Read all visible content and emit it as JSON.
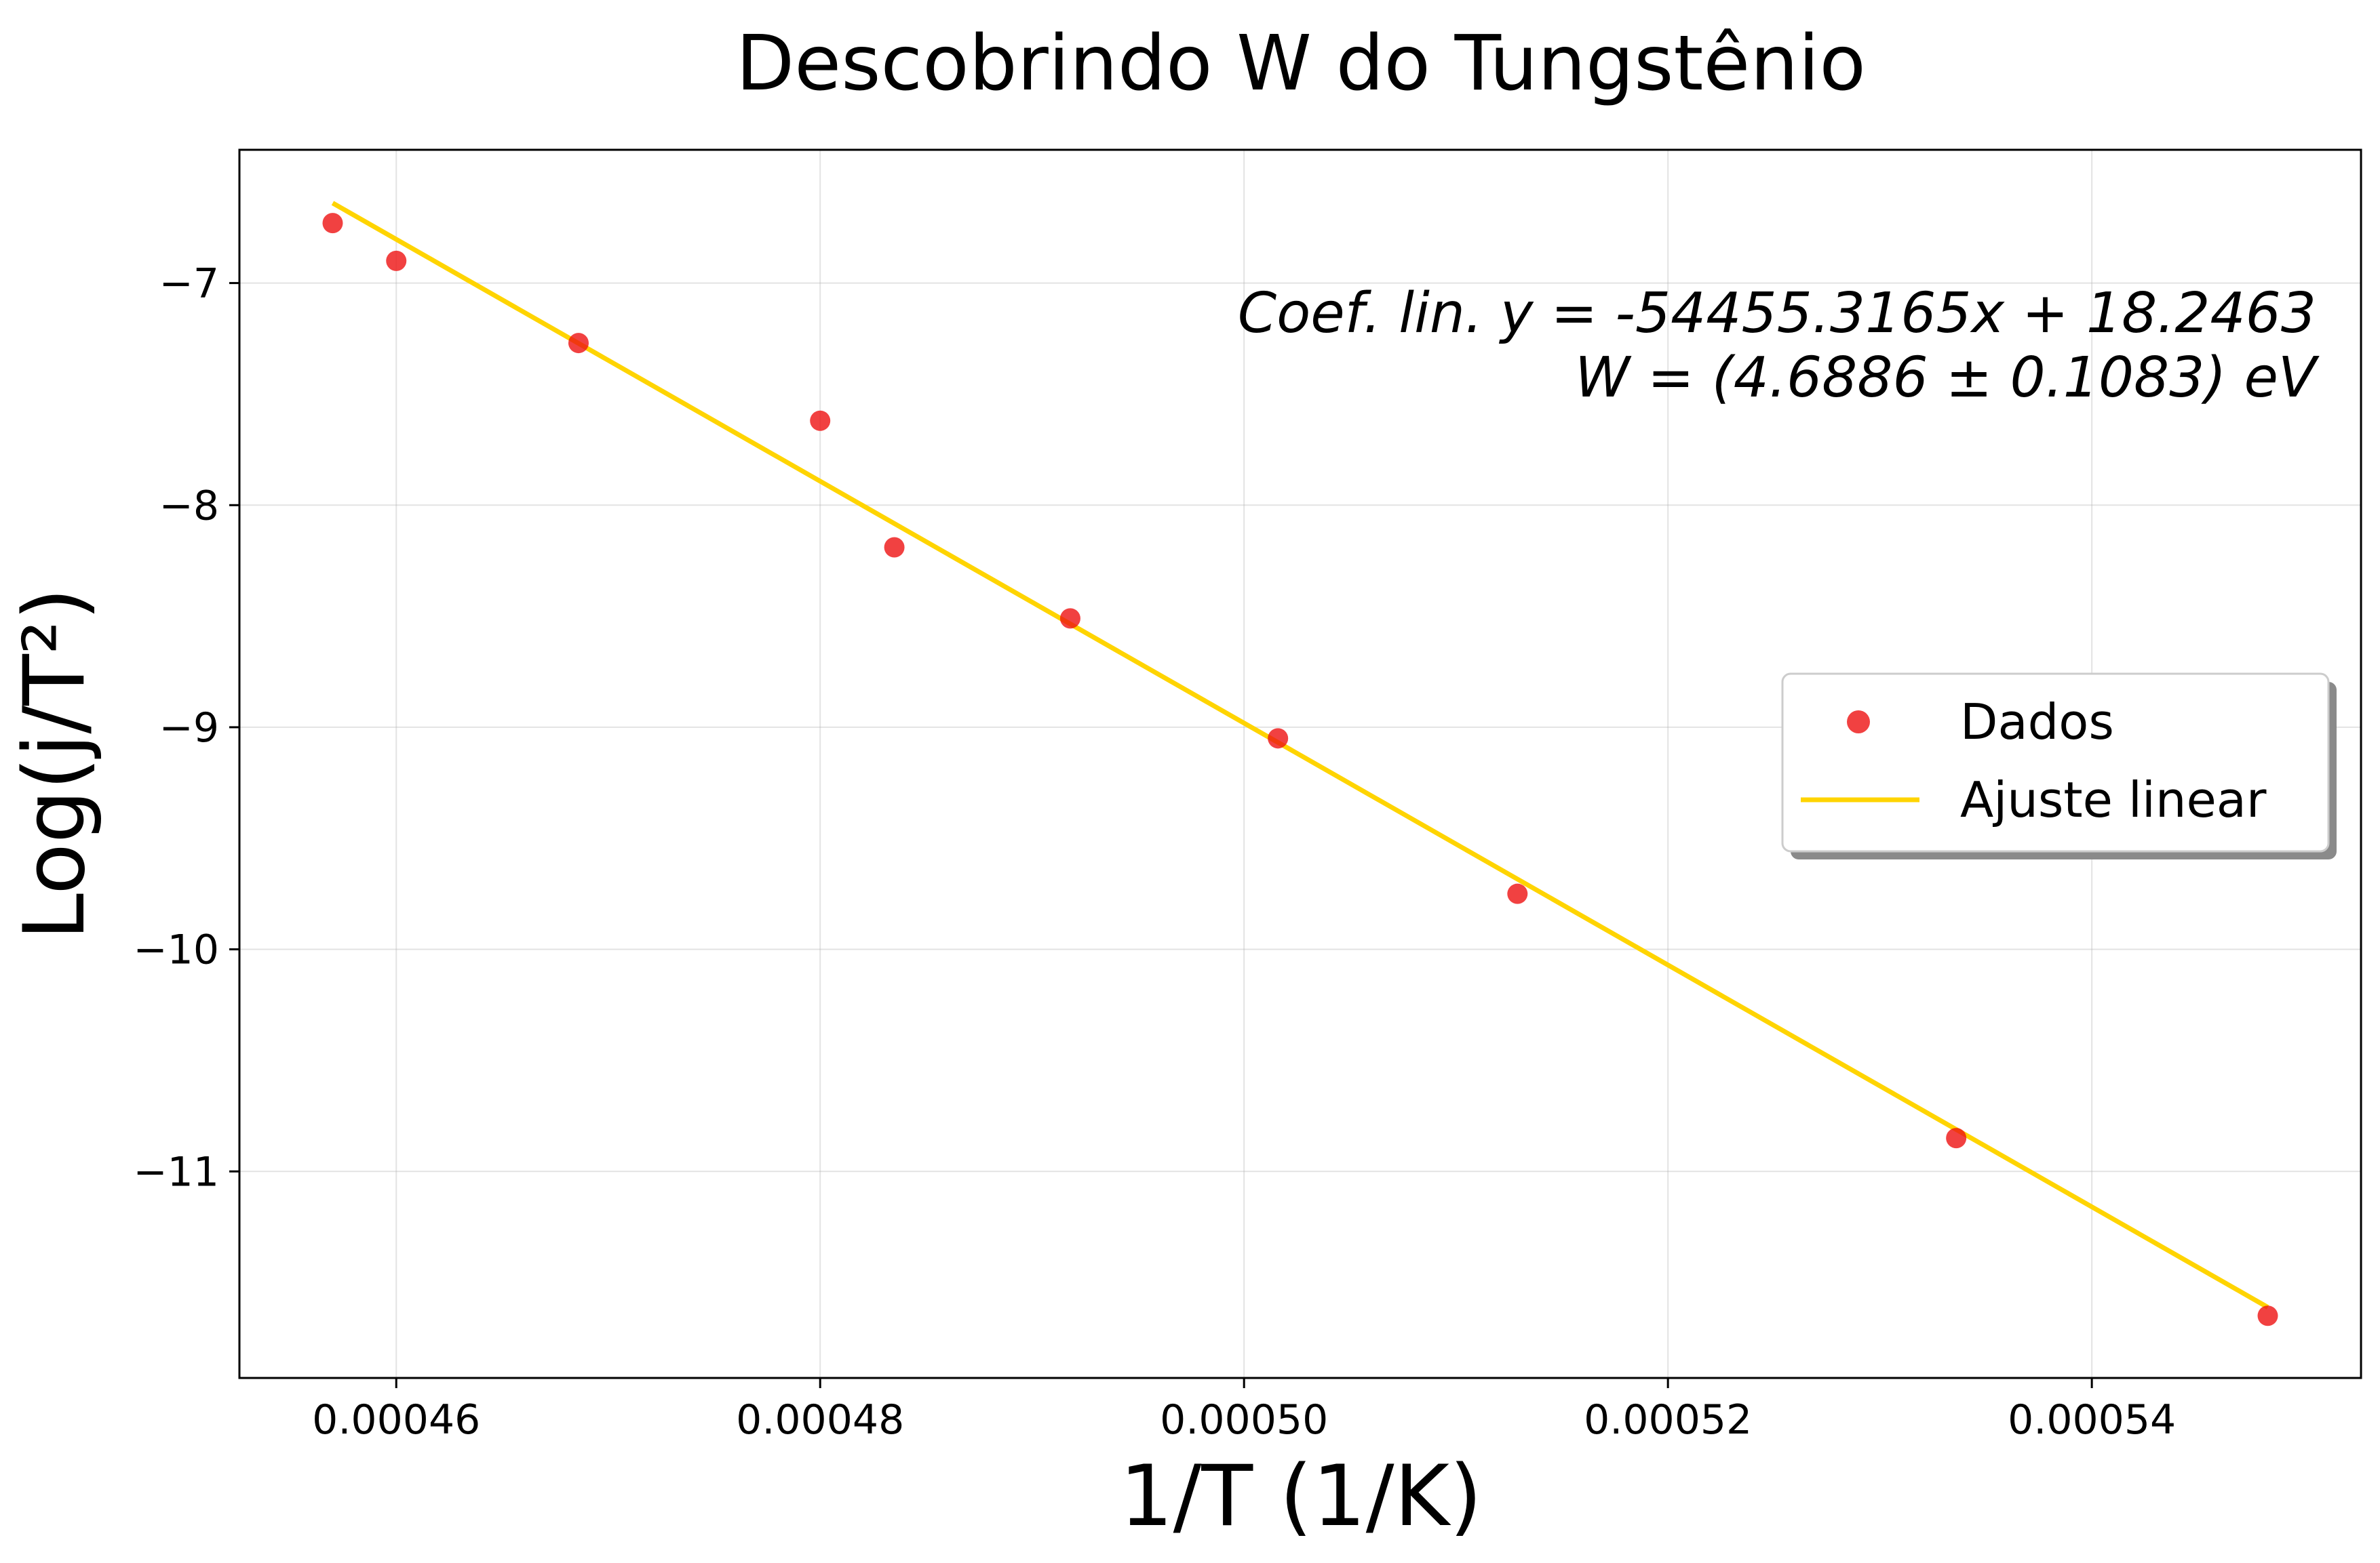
{
  "chart_data": {
    "type": "scatter",
    "title": "Descobrindo W do Tungstênio",
    "xlabel": "1/T (1/K)",
    "ylabel": "Log(j/T²)",
    "xlim": [
      0.0004526,
      0.0005527
    ],
    "ylim": [
      -11.93,
      -6.4
    ],
    "x_ticks": [
      0.00046,
      0.00048,
      0.0005,
      0.00052,
      0.00054
    ],
    "x_tick_labels": [
      "0.00046",
      "0.00048",
      "0.00050",
      "0.00052",
      "0.00054"
    ],
    "y_ticks": [
      -7,
      -8,
      -9,
      -10,
      -11
    ],
    "y_tick_labels": [
      "−7",
      "−8",
      "−9",
      "−10",
      "−11"
    ],
    "grid": true,
    "legend_position": "center-right",
    "series": [
      {
        "name": "Dados",
        "kind": "scatter",
        "color": "#ee1111",
        "x": [
          0.000457,
          0.00046,
          0.0004686,
          0.00048,
          0.0004835,
          0.0004918,
          0.0005016,
          0.0005129,
          0.0005336,
          0.0005483
        ],
        "y": [
          -6.73,
          -6.9,
          -7.27,
          -7.62,
          -8.19,
          -8.51,
          -9.05,
          -9.75,
          -10.85,
          -11.65
        ]
      },
      {
        "name": "Ajuste linear",
        "kind": "line",
        "color": "#ffd400",
        "slope": -54455.3165,
        "intercept": 18.2463,
        "x_range": [
          0.000457,
          0.0005483
        ]
      }
    ],
    "annotations": [
      "Coef. lin. y = -54455.3165x + 18.2463",
      "W = (4.6886 ± 0.1083) eV"
    ]
  }
}
